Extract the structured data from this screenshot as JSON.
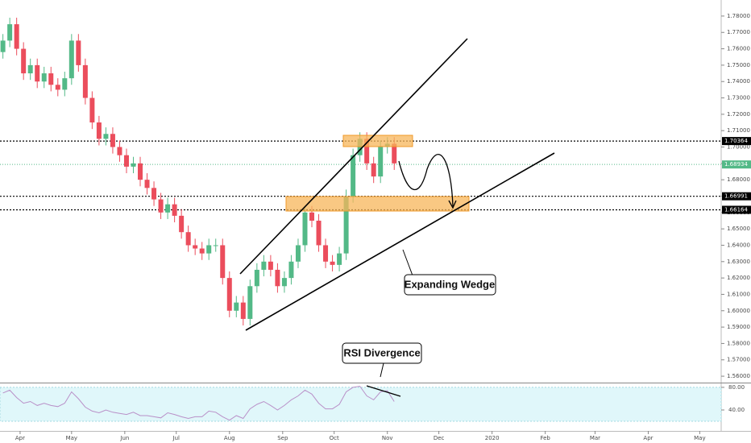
{
  "chart_data": [
    {
      "type": "candlestick",
      "x": [
        -10,
        -6,
        -2,
        2,
        6,
        10,
        14,
        18,
        22,
        26,
        30,
        34,
        38,
        42,
        46,
        50,
        54,
        58,
        62,
        66,
        70,
        74,
        78,
        82,
        86,
        90,
        94,
        98,
        102,
        106,
        110,
        114,
        118,
        122,
        126,
        130,
        134,
        138,
        142,
        146,
        150,
        154,
        158,
        162,
        166,
        170,
        174,
        178,
        182,
        186,
        190,
        194,
        198,
        202,
        206,
        210,
        214,
        218
      ],
      "open": [
        1.758,
        1.765,
        1.775,
        1.76,
        1.745,
        1.75,
        1.74,
        1.745,
        1.738,
        1.735,
        1.742,
        1.765,
        1.75,
        1.73,
        1.715,
        1.705,
        1.708,
        1.7,
        1.695,
        1.688,
        1.69,
        1.68,
        1.675,
        1.668,
        1.66,
        1.665,
        1.658,
        1.648,
        1.64,
        1.638,
        1.635,
        1.64,
        1.64,
        1.62,
        1.6,
        1.605,
        1.595,
        1.615,
        1.625,
        1.63,
        1.625,
        1.615,
        1.62,
        1.63,
        1.64,
        1.66,
        1.655,
        1.64,
        1.63,
        1.628,
        1.635,
        1.67,
        1.695,
        1.705,
        1.69,
        1.682,
        1.7,
        1.702
      ],
      "high": [
        1.769,
        1.779,
        1.779,
        1.764,
        1.754,
        1.754,
        1.749,
        1.749,
        1.742,
        1.746,
        1.769,
        1.769,
        1.754,
        1.734,
        1.719,
        1.712,
        1.712,
        1.704,
        1.699,
        1.694,
        1.694,
        1.684,
        1.679,
        1.672,
        1.669,
        1.669,
        1.662,
        1.652,
        1.644,
        1.642,
        1.644,
        1.644,
        1.644,
        1.624,
        1.609,
        1.609,
        1.619,
        1.629,
        1.634,
        1.634,
        1.629,
        1.624,
        1.634,
        1.644,
        1.664,
        1.664,
        1.659,
        1.644,
        1.634,
        1.639,
        1.674,
        1.699,
        1.709,
        1.709,
        1.694,
        1.704,
        1.706,
        1.706
      ],
      "low": [
        1.754,
        1.761,
        1.756,
        1.741,
        1.741,
        1.736,
        1.736,
        1.734,
        1.731,
        1.731,
        1.738,
        1.746,
        1.726,
        1.711,
        1.701,
        1.701,
        1.696,
        1.691,
        1.684,
        1.684,
        1.676,
        1.671,
        1.664,
        1.656,
        1.656,
        1.654,
        1.644,
        1.636,
        1.634,
        1.631,
        1.631,
        1.636,
        1.616,
        1.596,
        1.596,
        1.591,
        1.591,
        1.611,
        1.621,
        1.621,
        1.611,
        1.611,
        1.616,
        1.626,
        1.636,
        1.651,
        1.636,
        1.626,
        1.624,
        1.624,
        1.631,
        1.666,
        1.691,
        1.686,
        1.678,
        1.678,
        1.696,
        1.686
      ],
      "close": [
        1.765,
        1.775,
        1.76,
        1.745,
        1.75,
        1.74,
        1.745,
        1.738,
        1.735,
        1.742,
        1.765,
        1.75,
        1.73,
        1.715,
        1.705,
        1.708,
        1.7,
        1.695,
        1.688,
        1.69,
        1.68,
        1.675,
        1.668,
        1.66,
        1.665,
        1.658,
        1.648,
        1.64,
        1.638,
        1.635,
        1.64,
        1.64,
        1.62,
        1.6,
        1.605,
        1.595,
        1.615,
        1.625,
        1.63,
        1.625,
        1.615,
        1.62,
        1.63,
        1.64,
        1.66,
        1.655,
        1.64,
        1.63,
        1.628,
        1.635,
        1.67,
        1.695,
        1.705,
        1.69,
        1.682,
        1.7,
        1.702,
        1.69
      ],
      "up_color": "#53b987",
      "down_color": "#eb4d5c",
      "xlim": [
        -11.7,
        408.5
      ],
      "xticks": [
        {
          "value": 0,
          "label": "Apr"
        },
        {
          "value": 30,
          "label": "May"
        },
        {
          "value": 61,
          "label": "Jun"
        },
        {
          "value": 91,
          "label": "Jul"
        },
        {
          "value": 122,
          "label": "Aug"
        },
        {
          "value": 153,
          "label": "Sep"
        },
        {
          "value": 183,
          "label": "Oct"
        },
        {
          "value": 214,
          "label": "Nov"
        },
        {
          "value": 244,
          "label": "Dec"
        },
        {
          "value": 275,
          "label": "2020"
        },
        {
          "value": 306,
          "label": "Feb"
        },
        {
          "value": 335,
          "label": "Mar"
        },
        {
          "value": 366,
          "label": "Apr"
        },
        {
          "value": 396,
          "label": "May"
        }
      ],
      "ylim": [
        1.5561,
        1.7898
      ],
      "yticks": [
        {
          "value": 1.56,
          "label": "1.56000"
        },
        {
          "value": 1.57,
          "label": "1.57000"
        },
        {
          "value": 1.58,
          "label": "1.58000"
        },
        {
          "value": 1.59,
          "label": "1.59000"
        },
        {
          "value": 1.6,
          "label": "1.60000"
        },
        {
          "value": 1.61,
          "label": "1.61000"
        },
        {
          "value": 1.62,
          "label": "1.62000"
        },
        {
          "value": 1.63,
          "label": "1.63000"
        },
        {
          "value": 1.64,
          "label": "1.64000"
        },
        {
          "value": 1.65,
          "label": "1.65000"
        },
        {
          "value": 1.66,
          "label": "1.66000"
        },
        {
          "value": 1.67,
          "label": "1.67000"
        },
        {
          "value": 1.68,
          "label": "1.68000"
        },
        {
          "value": 1.69,
          "label": "1.69000"
        },
        {
          "value": 1.7,
          "label": "1.70000"
        },
        {
          "value": 1.71,
          "label": "1.71000"
        },
        {
          "value": 1.72,
          "label": "1.72000"
        },
        {
          "value": 1.73,
          "label": "1.73000"
        },
        {
          "value": 1.74,
          "label": "1.74000"
        },
        {
          "value": 1.75,
          "label": "1.75000"
        },
        {
          "value": 1.76,
          "label": "1.76000"
        },
        {
          "value": 1.77,
          "label": "1.77000"
        },
        {
          "value": 1.78,
          "label": "1.78000"
        }
      ],
      "levels": [
        1.70364,
        1.66991,
        1.66164
      ],
      "last_price": 1.68934,
      "annotations": [
        "Expanding Wedge",
        "RSI Divergence"
      ]
    },
    {
      "type": "line",
      "color": "#b990c8",
      "values": [
        70,
        75,
        62,
        52,
        55,
        48,
        52,
        48,
        46,
        52,
        72,
        60,
        45,
        38,
        35,
        40,
        36,
        34,
        32,
        36,
        30,
        30,
        28,
        26,
        35,
        32,
        28,
        25,
        28,
        28,
        38,
        36,
        28,
        22,
        30,
        25,
        42,
        50,
        55,
        48,
        40,
        48,
        58,
        65,
        75,
        68,
        52,
        42,
        42,
        50,
        72,
        80,
        82,
        65,
        58,
        72,
        74,
        55
      ],
      "ylim": [
        3,
        87
      ],
      "yticks": [
        {
          "value": 80,
          "label": "80.00"
        },
        {
          "value": 40,
          "label": "40.00"
        }
      ]
    }
  ]
}
